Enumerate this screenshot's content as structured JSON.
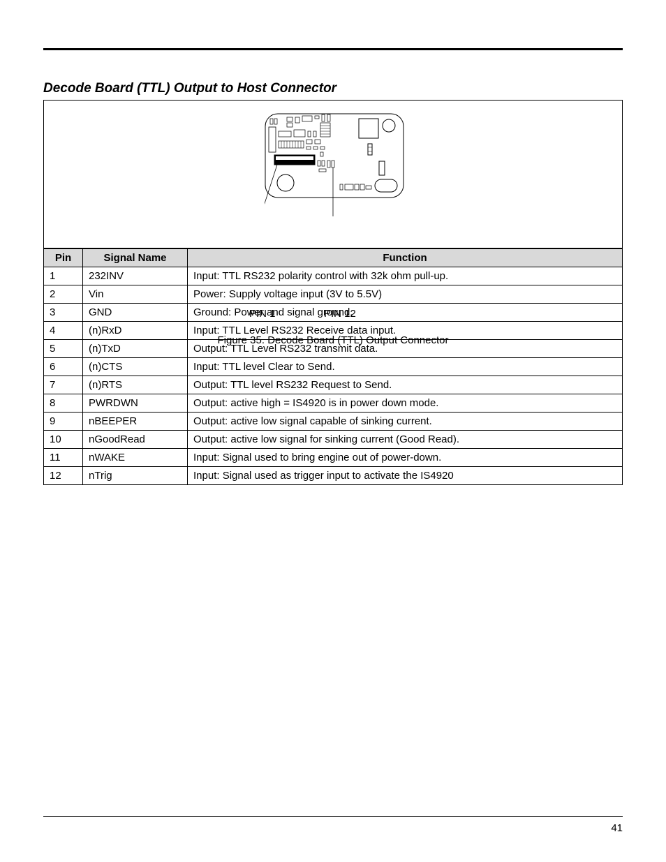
{
  "title": "Decode Board (TTL) Output to Host Connector",
  "figure": {
    "caption": "Figure 35. Decode Board (TTL) Output Connector",
    "pin1_label": "PIN 1",
    "pin12_label": "PIN 12"
  },
  "table": {
    "columns": [
      "Pin",
      "Signal Name",
      "Function"
    ],
    "rows": [
      [
        "1",
        "232INV",
        "Input: TTL RS232 polarity control with 32k ohm pull-up."
      ],
      [
        "2",
        "Vin",
        "Power: Supply voltage input (3V to 5.5V)"
      ],
      [
        "3",
        "GND",
        "Ground: Power and signal ground."
      ],
      [
        "4",
        "(n)RxD",
        "Input: TTL Level RS232 Receive data input."
      ],
      [
        "5",
        "(n)TxD",
        "Output: TTL Level RS232 transmit data."
      ],
      [
        "6",
        "(n)CTS",
        "Input: TTL level Clear to Send."
      ],
      [
        "7",
        "(n)RTS",
        "Output:  TTL level RS232 Request to Send."
      ],
      [
        "8",
        "PWRDWN",
        "Output: active high = IS4920 is in power down mode."
      ],
      [
        "9",
        "nBEEPER",
        "Output: active low signal capable of sinking current."
      ],
      [
        "10",
        "nGoodRead",
        "Output: active low signal for sinking current (Good Read)."
      ],
      [
        "11",
        "nWAKE",
        "Input: Signal used to bring engine out of power-down."
      ],
      [
        "12",
        "nTrig",
        "Input: Signal used as trigger input to activate the IS4920"
      ]
    ]
  },
  "page_number": "41"
}
